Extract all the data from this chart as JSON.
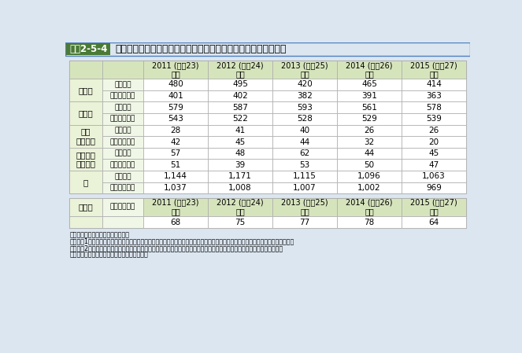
{
  "title_box_label": "図表2-5-4",
  "title_text": "労災保険法に基づく石綿による肺がん、中皮腫等の労災補償状況",
  "years": [
    "2011 (平成23)\n年度",
    "2012 (平成24)\n年度",
    "2013 (平成25)\n年度",
    "2014 (平成26)\n年度",
    "2015 (平成27)\n年度"
  ],
  "main_table": {
    "row_groups": [
      {
        "group": "肺がん",
        "rows": [
          {
            "label": "請求件数",
            "values": [
              "480",
              "495",
              "420",
              "465",
              "414"
            ]
          },
          {
            "label": "支給決定件数",
            "values": [
              "401",
              "402",
              "382",
              "391",
              "363"
            ]
          }
        ]
      },
      {
        "group": "中皮腫",
        "rows": [
          {
            "label": "請求件数",
            "values": [
              "579",
              "587",
              "593",
              "561",
              "578"
            ]
          },
          {
            "label": "支給決定件数",
            "values": [
              "543",
              "522",
              "528",
              "529",
              "539"
            ]
          }
        ]
      },
      {
        "group": "良性\n石綿胸水",
        "rows": [
          {
            "label": "請求件数",
            "values": [
              "28",
              "41",
              "40",
              "26",
              "26"
            ]
          },
          {
            "label": "支給決定件数",
            "values": [
              "42",
              "45",
              "44",
              "32",
              "20"
            ]
          }
        ]
      },
      {
        "group": "びまん性\n胸膜肥厚",
        "rows": [
          {
            "label": "請求件数",
            "values": [
              "57",
              "48",
              "62",
              "44",
              "45"
            ]
          },
          {
            "label": "支給決定件数",
            "values": [
              "51",
              "39",
              "53",
              "50",
              "47"
            ]
          }
        ]
      },
      {
        "group": "計",
        "rows": [
          {
            "label": "請求件数",
            "values": [
              "1,144",
              "1,171",
              "1,115",
              "1,096",
              "1,063"
            ]
          },
          {
            "label": "支給決定件数",
            "values": [
              "1,037",
              "1,008",
              "1,007",
              "1,002",
              "969"
            ]
          }
        ]
      }
    ]
  },
  "sub_table": {
    "group": "石綿肺",
    "label": "支給決定件数",
    "values": [
      "68",
      "75",
      "77",
      "78",
      "64"
    ]
  },
  "footer_lines": [
    "資料：厚生労働省労働基準局調べ。",
    "（注）　1．請求件数は当該年度に請求されたものの合計であるが、支給決定件数は当該年度に請求されたものに限るものではない。",
    "　　　　2．「石綿肺」はじん肺の一種であり、石綿肺又はじん肺として労災請求されたもののうち、石綿肺として労災認定さ",
    "　　　　　れたものを抽出し、集計している。"
  ],
  "bg_color": "#dce6f0",
  "header_bg": "#d6e4bc",
  "white": "#ffffff",
  "group_col_bg": "#eaf2d7",
  "label_col_bg": "#f0f7e6",
  "border_color": "#aaaaaa",
  "title_box_bg": "#4a7a35",
  "title_box_text_color": "#ffffff",
  "title_border_color": "#5080c0"
}
